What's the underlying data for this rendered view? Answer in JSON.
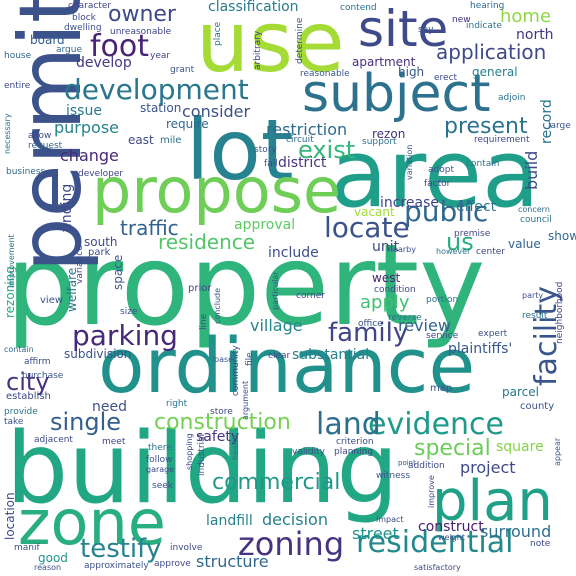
{
  "words": [
    {
      "text": "property",
      "color": "#2fb47c"
    },
    {
      "text": "building",
      "color": "#22a785"
    },
    {
      "text": "ordinance",
      "color": "#21918c"
    },
    {
      "text": "area",
      "color": "#1f9e89"
    },
    {
      "text": "permit",
      "color": "#3b528b"
    },
    {
      "text": "lot",
      "color": "#26828e"
    },
    {
      "text": "use",
      "color": "#a5db36"
    },
    {
      "text": "propose",
      "color": "#6ece58"
    },
    {
      "text": "zone",
      "color": "#28ae80"
    },
    {
      "text": "plan",
      "color": "#1fa187"
    },
    {
      "text": "subject",
      "color": "#2c728e"
    },
    {
      "text": "site",
      "color": "#3e4a89"
    },
    {
      "text": "development",
      "color": "#2a768e"
    },
    {
      "text": "residential",
      "color": "#23898e"
    },
    {
      "text": "evidence",
      "color": "#1f9a8a"
    },
    {
      "text": "zoning",
      "color": "#463480"
    },
    {
      "text": "facility",
      "color": "#39568c"
    },
    {
      "text": "foot",
      "color": "#482475"
    },
    {
      "text": "family",
      "color": "#414487"
    },
    {
      "text": "parking",
      "color": "#482878"
    },
    {
      "text": "locate",
      "color": "#3b528b"
    },
    {
      "text": "public",
      "color": "#31688e"
    },
    {
      "text": "exist",
      "color": "#35b779"
    },
    {
      "text": "residence",
      "color": "#52c569"
    },
    {
      "text": "testify",
      "color": "#26828e"
    },
    {
      "text": "single",
      "color": "#355f8d"
    },
    {
      "text": "land",
      "color": "#2e6f8e"
    },
    {
      "text": "city",
      "color": "#46327e"
    },
    {
      "text": "commercial",
      "color": "#1f988b"
    },
    {
      "text": "construction",
      "color": "#75d054"
    },
    {
      "text": "application",
      "color": "#3e4989"
    },
    {
      "text": "owner",
      "color": "#3e4989"
    },
    {
      "text": "present",
      "color": "#2c728e"
    },
    {
      "text": "special",
      "color": "#6ccd5a"
    },
    {
      "text": "us",
      "color": "#26ad81"
    },
    {
      "text": "structure",
      "color": "#31688e"
    },
    {
      "text": "home",
      "color": "#8fd744"
    },
    {
      "text": "restriction",
      "color": "#2f6c8e"
    },
    {
      "text": "consider",
      "color": "#3b528b"
    },
    {
      "text": "traffic",
      "color": "#33638d"
    },
    {
      "text": "village",
      "color": "#24868e"
    },
    {
      "text": "project",
      "color": "#3e4989"
    },
    {
      "text": "change",
      "color": "#482878"
    },
    {
      "text": "purpose",
      "color": "#25848e"
    },
    {
      "text": "apply",
      "color": "#42be71"
    },
    {
      "text": "decision",
      "color": "#27808e"
    },
    {
      "text": "landfill",
      "color": "#26828e"
    },
    {
      "text": "build",
      "color": "#3e4989"
    },
    {
      "text": "record",
      "color": "#2c728e"
    },
    {
      "text": "street",
      "color": "#1f948c"
    },
    {
      "text": "issue",
      "color": "#29798e"
    },
    {
      "text": "review",
      "color": "#33638d"
    },
    {
      "text": "need",
      "color": "#3b528b"
    },
    {
      "text": "construct",
      "color": "#481b6d"
    },
    {
      "text": "surround",
      "color": "#2d708e"
    },
    {
      "text": "district",
      "color": "#46337f"
    },
    {
      "text": "substantial",
      "color": "#277f8e"
    },
    {
      "text": "finding",
      "color": "#3e4989"
    },
    {
      "text": "north",
      "color": "#463480"
    },
    {
      "text": "develop",
      "color": "#453781"
    },
    {
      "text": "increase",
      "color": "#404688"
    },
    {
      "text": "approval",
      "color": "#5ec962"
    },
    {
      "text": "classification",
      "color": "#287c8e"
    },
    {
      "text": "plaintiffs'",
      "color": "#38588c"
    },
    {
      "text": "safety",
      "color": "#46327e"
    },
    {
      "text": "effect",
      "color": "#2c738e"
    },
    {
      "text": "include",
      "color": "#3d4e8a"
    },
    {
      "text": "square",
      "color": "#84d44b"
    },
    {
      "text": "unit",
      "color": "#404688"
    },
    {
      "text": "apartment",
      "color": "#472f7d"
    },
    {
      "text": "station",
      "color": "#3b528b"
    },
    {
      "text": "require",
      "color": "#31688e"
    },
    {
      "text": "general",
      "color": "#277f8e"
    },
    {
      "text": "space",
      "color": "#38588c"
    },
    {
      "text": "south",
      "color": "#3e4c8a"
    },
    {
      "text": "parcel",
      "color": "#2a768e"
    },
    {
      "text": "west",
      "color": "#482475"
    },
    {
      "text": "vacant",
      "color": "#a2da37"
    },
    {
      "text": "high",
      "color": "#39568c"
    },
    {
      "text": "rezon",
      "color": "#46327e"
    },
    {
      "text": "east",
      "color": "#3e4a89"
    },
    {
      "text": "board",
      "color": "#365c8d"
    },
    {
      "text": "location",
      "color": "#3e4989"
    },
    {
      "text": "rezoning",
      "color": "#25ab82"
    },
    {
      "text": "welfare",
      "color": "#2c728e"
    },
    {
      "text": "subdivision",
      "color": "#3b528b"
    },
    {
      "text": "good",
      "color": "#1f958b"
    },
    {
      "text": "view",
      "color": "#3b528b"
    },
    {
      "text": "show",
      "color": "#31688e"
    },
    {
      "text": "value",
      "color": "#32648e"
    },
    {
      "text": "county",
      "color": "#3b528b"
    },
    {
      "text": "map",
      "color": "#3b528b"
    },
    {
      "text": "contend",
      "color": "#2c728e"
    },
    {
      "text": "hearing",
      "color": "#31688e"
    },
    {
      "text": "character",
      "color": "#414487"
    },
    {
      "text": "block",
      "color": "#3e4989"
    },
    {
      "text": "dwelling",
      "color": "#3b528b"
    },
    {
      "text": "indicate",
      "color": "#2c728e"
    },
    {
      "text": "unreasonable",
      "color": "#414487"
    },
    {
      "text": "argue",
      "color": "#31688e"
    },
    {
      "text": "year",
      "color": "#414487"
    },
    {
      "text": "grant",
      "color": "#3b528b"
    },
    {
      "text": "reasonable",
      "color": "#38588c"
    },
    {
      "text": "house",
      "color": "#31688e"
    },
    {
      "text": "arbitrary",
      "color": "#414487"
    },
    {
      "text": "determine",
      "color": "#3b528b"
    },
    {
      "text": "place",
      "color": "#2c728e"
    },
    {
      "text": "say",
      "color": "#3b528b"
    },
    {
      "text": "new",
      "color": "#46327e"
    },
    {
      "text": "entire",
      "color": "#3e4989"
    },
    {
      "text": "adjoin",
      "color": "#2c728e"
    },
    {
      "text": "erect",
      "color": "#3e4989"
    },
    {
      "text": "allow",
      "color": "#3e4989"
    },
    {
      "text": "request",
      "color": "#31688e"
    },
    {
      "text": "necessary",
      "color": "#2c728e"
    },
    {
      "text": "affect",
      "color": "#3b528b"
    },
    {
      "text": "mile",
      "color": "#2c728e"
    },
    {
      "text": "story",
      "color": "#3b528b"
    },
    {
      "text": "circuit",
      "color": "#31688e"
    },
    {
      "text": "support",
      "color": "#2c728e"
    },
    {
      "text": "requirement",
      "color": "#3e4989"
    },
    {
      "text": "large",
      "color": "#3b528b"
    },
    {
      "text": "fail",
      "color": "#3e4989"
    },
    {
      "text": "business",
      "color": "#31688e"
    },
    {
      "text": "developer",
      "color": "#414487"
    },
    {
      "text": "adopt",
      "color": "#3b528b"
    },
    {
      "text": "factor",
      "color": "#3e4989"
    },
    {
      "text": "contain",
      "color": "#2c728e"
    },
    {
      "text": "council",
      "color": "#2c728e"
    },
    {
      "text": "variation",
      "color": "#3b528b"
    },
    {
      "text": "concern",
      "color": "#31688e"
    },
    {
      "text": "premise",
      "color": "#3e4989"
    },
    {
      "text": "improvement",
      "color": "#2c728e"
    },
    {
      "text": "variance",
      "color": "#3e4989"
    },
    {
      "text": "park",
      "color": "#3b528b"
    },
    {
      "text": "nearby",
      "color": "#3b528b"
    },
    {
      "text": "however",
      "color": "#2c728e"
    },
    {
      "text": "center",
      "color": "#3e4989"
    },
    {
      "text": "party",
      "color": "#3b528b"
    },
    {
      "text": "result",
      "color": "#2c728e"
    },
    {
      "text": "neighborhood",
      "color": "#3e4989"
    },
    {
      "text": "condition",
      "color": "#3e4989"
    },
    {
      "text": "portion",
      "color": "#2c728e"
    },
    {
      "text": "size",
      "color": "#3b528b"
    },
    {
      "text": "prior",
      "color": "#3e4989"
    },
    {
      "text": "particular",
      "color": "#3b528b"
    },
    {
      "text": "line",
      "color": "#3e4989"
    },
    {
      "text": "conclude",
      "color": "#3b528b"
    },
    {
      "text": "corner",
      "color": "#3e4989"
    },
    {
      "text": "reverse",
      "color": "#2c728e"
    },
    {
      "text": "office",
      "color": "#3b528b"
    },
    {
      "text": "service",
      "color": "#3e4989"
    },
    {
      "text": "expert",
      "color": "#3b528b"
    },
    {
      "text": "contain",
      "color": "#31688e"
    },
    {
      "text": "affirm",
      "color": "#3e4989"
    },
    {
      "text": "purchase",
      "color": "#3b528b"
    },
    {
      "text": "establish",
      "color": "#3e4989"
    },
    {
      "text": "provide",
      "color": "#2c728e"
    },
    {
      "text": "take",
      "color": "#3b528b"
    },
    {
      "text": "adjacent",
      "color": "#3e4989"
    },
    {
      "text": "base",
      "color": "#3b528b"
    },
    {
      "text": "clear",
      "color": "#3e4989"
    },
    {
      "text": "right",
      "color": "#2c728e"
    },
    {
      "text": "store",
      "color": "#3e4989"
    },
    {
      "text": "argument",
      "color": "#3b528b"
    },
    {
      "text": "community",
      "color": "#3e4989"
    },
    {
      "text": "file",
      "color": "#3b528b"
    },
    {
      "text": "meet",
      "color": "#3e4989"
    },
    {
      "text": "there",
      "color": "#2c728e"
    },
    {
      "text": "follow",
      "color": "#3b528b"
    },
    {
      "text": "garage",
      "color": "#3e4989"
    },
    {
      "text": "seek",
      "color": "#3b528b"
    },
    {
      "text": "shopping",
      "color": "#3e4989"
    },
    {
      "text": "industrial",
      "color": "#3b528b"
    },
    {
      "text": "health",
      "color": "#2c728e"
    },
    {
      "text": "criterion",
      "color": "#3e4989"
    },
    {
      "text": "validity",
      "color": "#3b528b"
    },
    {
      "text": "planning",
      "color": "#3e4989"
    },
    {
      "text": "point",
      "color": "#3b528b"
    },
    {
      "text": "addition",
      "color": "#3e4989"
    },
    {
      "text": "witness",
      "color": "#3b528b"
    },
    {
      "text": "improve",
      "color": "#3e4989"
    },
    {
      "text": "appear",
      "color": "#3b528b"
    },
    {
      "text": "impact",
      "color": "#3e4989"
    },
    {
      "text": "weight",
      "color": "#3b528b"
    },
    {
      "text": "note",
      "color": "#3e4989"
    },
    {
      "text": "manif",
      "color": "#3b528b"
    },
    {
      "text": "involve",
      "color": "#3e4989"
    },
    {
      "text": "approximately",
      "color": "#3b528b"
    },
    {
      "text": "approve",
      "color": "#3e4989"
    },
    {
      "text": "reason",
      "color": "#3b528b"
    },
    {
      "text": "satisfactory",
      "color": "#3e4989"
    }
  ]
}
